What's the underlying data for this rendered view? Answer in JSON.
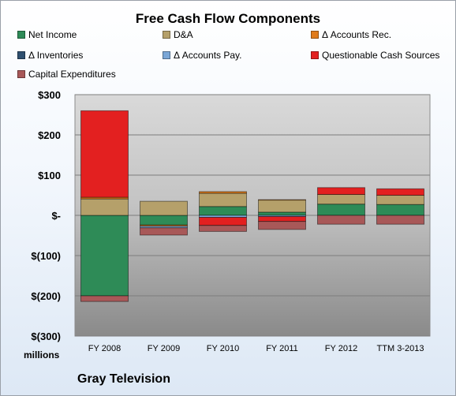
{
  "chart_data": {
    "type": "bar",
    "stacked": true,
    "title": "Free Cash Flow Components",
    "unit_label": "millions",
    "footer": "Gray Television",
    "categories": [
      "FY 2008",
      "FY 2009",
      "FY 2010",
      "FY 2011",
      "FY 2012",
      "TTM 3-2013"
    ],
    "ylim": [
      -300,
      300
    ],
    "yticks": [
      300,
      200,
      100,
      0,
      -100,
      -200,
      -300
    ],
    "ytick_labels": [
      "$300",
      "$200",
      "$100",
      "$-",
      "$(100)",
      "$(200)",
      "$(300)"
    ],
    "grid": true,
    "legend_position": "top",
    "series": [
      {
        "name": "Net Income",
        "color": "#2e8b57",
        "values": [
          -200,
          -24,
          22,
          8,
          28,
          27
        ]
      },
      {
        "name": "D&A",
        "color": "#b5a06a",
        "values": [
          41,
          35,
          33,
          30,
          24,
          23
        ]
      },
      {
        "name": "Δ Accounts Rec.",
        "color": "#e07b1a",
        "values": [
          4,
          -3,
          4,
          1,
          0,
          0
        ]
      },
      {
        "name": "Δ Inventories",
        "color": "#2f4f6f",
        "values": [
          0,
          0,
          0,
          0,
          0,
          0
        ]
      },
      {
        "name": "Δ Accounts Pay.",
        "color": "#7aa6d6",
        "values": [
          0,
          -4,
          -5,
          -3,
          0,
          0
        ]
      },
      {
        "name": "Questionable Cash Sources",
        "color": "#e32020",
        "values": [
          215,
          0,
          -20,
          -12,
          17,
          16
        ]
      },
      {
        "name": "Capital Expenditures",
        "color": "#a85858",
        "values": [
          -14,
          -18,
          -15,
          -20,
          -22,
          -22
        ]
      }
    ]
  }
}
